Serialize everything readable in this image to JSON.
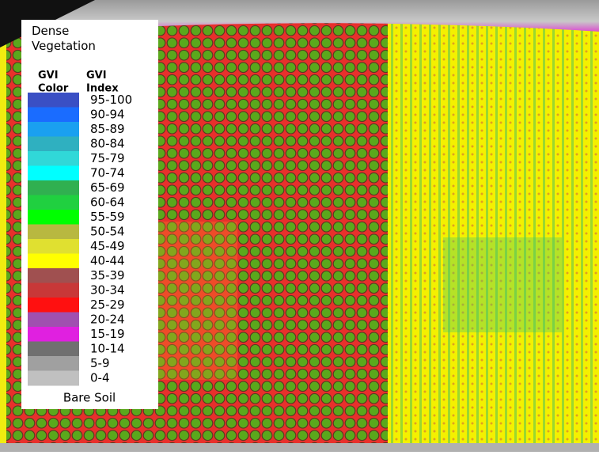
{
  "legend": {
    "top_label": "Dense Vegetation",
    "color_header": "GVI Color",
    "index_header": "GVI Index",
    "items": [
      {
        "label": "95-100",
        "color": "#3a4fc4"
      },
      {
        "label": "90-94",
        "color": "#1a6cff"
      },
      {
        "label": "85-89",
        "color": "#1aa0f0"
      },
      {
        "label": "80-84",
        "color": "#2fb0c0"
      },
      {
        "label": "75-79",
        "color": "#30d8d8"
      },
      {
        "label": "70-74",
        "color": "#00ffff"
      },
      {
        "label": "65-69",
        "color": "#30b050"
      },
      {
        "label": "60-64",
        "color": "#20d040"
      },
      {
        "label": "55-59",
        "color": "#00ff00"
      },
      {
        "label": "50-54",
        "color": "#b8b840"
      },
      {
        "label": "45-49",
        "color": "#e0e030"
      },
      {
        "label": "40-44",
        "color": "#ffff00"
      },
      {
        "label": "35-39",
        "color": "#a05050"
      },
      {
        "label": "30-34",
        "color": "#c83838"
      },
      {
        "label": "25-29",
        "color": "#ff1010"
      },
      {
        "label": "20-24",
        "color": "#a050b0"
      },
      {
        "label": "15-19",
        "color": "#e020e0"
      },
      {
        "label": "10-14",
        "color": "#707070"
      },
      {
        "label": "5-9",
        "color": "#a0a0a0"
      },
      {
        "label": "0-4",
        "color": "#c0c0c0"
      }
    ],
    "bottom_label": "Bare Soil"
  }
}
